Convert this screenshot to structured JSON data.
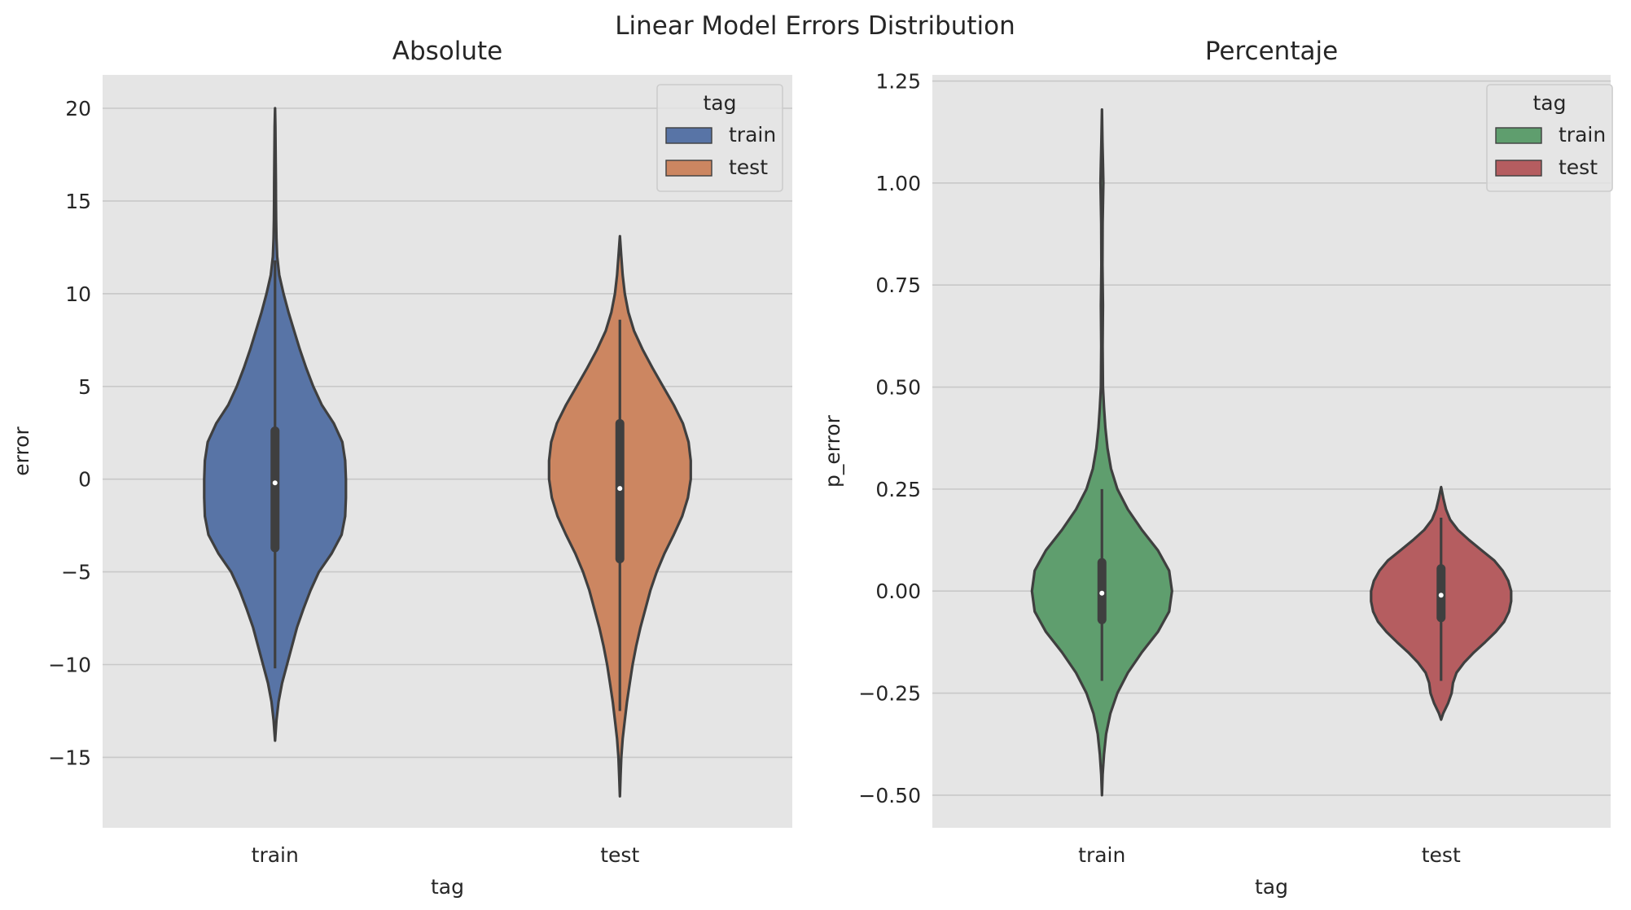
{
  "figure": {
    "title": "Linear Model Errors Distribution"
  },
  "chart_data": [
    {
      "type": "violin",
      "title": "Absolute",
      "xlabel": "tag",
      "ylabel": "error",
      "categories": [
        "train",
        "test"
      ],
      "ylim": [
        -18.8,
        21.8
      ],
      "yticks": [
        -15,
        -10,
        -5,
        0,
        5,
        10,
        15,
        20
      ],
      "ytick_labels": [
        "−15",
        "−10",
        "−5",
        "0",
        "5",
        "10",
        "15",
        "20"
      ],
      "grid": true,
      "legend": {
        "title": "tag",
        "position": "top-right",
        "entries": [
          "train",
          "test"
        ]
      },
      "series": [
        {
          "name": "train",
          "color": "#5874a6",
          "min": -10.2,
          "q1": -3.7,
          "median": -0.2,
          "q3": 2.6,
          "max": 11.8,
          "density": [
            [
              -14.1,
              0.0
            ],
            [
              -13.0,
              0.02
            ],
            [
              -12.0,
              0.05
            ],
            [
              -11.0,
              0.1
            ],
            [
              -10.0,
              0.17
            ],
            [
              -9.0,
              0.24
            ],
            [
              -8.0,
              0.31
            ],
            [
              -7.0,
              0.4
            ],
            [
              -6.0,
              0.5
            ],
            [
              -5.0,
              0.62
            ],
            [
              -4.0,
              0.8
            ],
            [
              -3.0,
              0.94
            ],
            [
              -2.0,
              0.99
            ],
            [
              -1.0,
              1.0
            ],
            [
              0.0,
              1.0
            ],
            [
              1.0,
              0.99
            ],
            [
              2.0,
              0.95
            ],
            [
              3.0,
              0.83
            ],
            [
              4.0,
              0.66
            ],
            [
              5.0,
              0.54
            ],
            [
              6.0,
              0.44
            ],
            [
              7.0,
              0.35
            ],
            [
              8.0,
              0.27
            ],
            [
              9.0,
              0.19
            ],
            [
              10.0,
              0.12
            ],
            [
              11.0,
              0.06
            ],
            [
              12.0,
              0.03
            ],
            [
              13.0,
              0.02
            ],
            [
              14.0,
              0.015
            ],
            [
              15.0,
              0.013
            ],
            [
              16.0,
              0.012
            ],
            [
              17.0,
              0.01
            ],
            [
              18.0,
              0.008
            ],
            [
              19.0,
              0.005
            ],
            [
              20.0,
              0.0
            ]
          ]
        },
        {
          "name": "test",
          "color": "#cc8661",
          "min": -12.5,
          "q1": -4.3,
          "median": -0.5,
          "q3": 3.0,
          "max": 8.6,
          "density": [
            [
              -17.1,
              0.0
            ],
            [
              -16.0,
              0.01
            ],
            [
              -15.0,
              0.02
            ],
            [
              -14.0,
              0.04
            ],
            [
              -13.0,
              0.07
            ],
            [
              -12.0,
              0.1
            ],
            [
              -11.0,
              0.14
            ],
            [
              -10.0,
              0.18
            ],
            [
              -9.0,
              0.23
            ],
            [
              -8.0,
              0.29
            ],
            [
              -7.0,
              0.36
            ],
            [
              -6.0,
              0.43
            ],
            [
              -5.0,
              0.52
            ],
            [
              -4.0,
              0.63
            ],
            [
              -3.0,
              0.76
            ],
            [
              -2.0,
              0.88
            ],
            [
              -1.0,
              0.96
            ],
            [
              0.0,
              1.0
            ],
            [
              1.0,
              1.0
            ],
            [
              2.0,
              0.97
            ],
            [
              3.0,
              0.89
            ],
            [
              4.0,
              0.76
            ],
            [
              5.0,
              0.61
            ],
            [
              6.0,
              0.46
            ],
            [
              7.0,
              0.32
            ],
            [
              8.0,
              0.2
            ],
            [
              9.0,
              0.12
            ],
            [
              10.0,
              0.07
            ],
            [
              11.0,
              0.04
            ],
            [
              12.0,
              0.02
            ],
            [
              13.1,
              0.0
            ]
          ]
        }
      ]
    },
    {
      "type": "violin",
      "title": "Percentaje",
      "xlabel": "tag",
      "ylabel": "p_error",
      "categories": [
        "train",
        "test"
      ],
      "ylim": [
        -0.58,
        1.265
      ],
      "yticks": [
        -0.5,
        -0.25,
        0.0,
        0.25,
        0.5,
        0.75,
        1.0,
        1.25
      ],
      "ytick_labels": [
        "−0.50",
        "−0.25",
        "0.00",
        "0.25",
        "0.50",
        "0.75",
        "1.00",
        "1.25"
      ],
      "grid": true,
      "legend": {
        "title": "tag",
        "position": "top-right",
        "entries": [
          "train",
          "test"
        ]
      },
      "series": [
        {
          "name": "train",
          "color": "#5f9e6e",
          "min": -0.22,
          "q1": -0.07,
          "median": -0.005,
          "q3": 0.07,
          "max": 0.25,
          "density": [
            [
              -0.5,
              0.0
            ],
            [
              -0.45,
              0.01
            ],
            [
              -0.4,
              0.03
            ],
            [
              -0.35,
              0.06
            ],
            [
              -0.3,
              0.12
            ],
            [
              -0.25,
              0.22
            ],
            [
              -0.2,
              0.37
            ],
            [
              -0.15,
              0.57
            ],
            [
              -0.1,
              0.8
            ],
            [
              -0.05,
              0.96
            ],
            [
              0.0,
              1.0
            ],
            [
              0.05,
              0.96
            ],
            [
              0.1,
              0.8
            ],
            [
              0.15,
              0.57
            ],
            [
              0.2,
              0.37
            ],
            [
              0.25,
              0.22
            ],
            [
              0.3,
              0.13
            ],
            [
              0.35,
              0.08
            ],
            [
              0.4,
              0.05
            ],
            [
              0.45,
              0.03
            ],
            [
              0.5,
              0.015
            ],
            [
              0.6,
              0.01
            ],
            [
              0.7,
              0.015
            ],
            [
              0.8,
              0.008
            ],
            [
              0.9,
              0.01
            ],
            [
              1.0,
              0.02
            ],
            [
              1.05,
              0.015
            ],
            [
              1.1,
              0.008
            ],
            [
              1.18,
              0.0
            ]
          ]
        },
        {
          "name": "test",
          "color": "#b55d60",
          "min": -0.22,
          "q1": -0.065,
          "median": -0.01,
          "q3": 0.055,
          "max": 0.18,
          "density": [
            [
              -0.315,
              0.0
            ],
            [
              -0.3,
              0.03
            ],
            [
              -0.275,
              0.1
            ],
            [
              -0.25,
              0.15
            ],
            [
              -0.225,
              0.17
            ],
            [
              -0.2,
              0.22
            ],
            [
              -0.175,
              0.33
            ],
            [
              -0.15,
              0.47
            ],
            [
              -0.125,
              0.63
            ],
            [
              -0.1,
              0.78
            ],
            [
              -0.075,
              0.9
            ],
            [
              -0.05,
              0.97
            ],
            [
              -0.025,
              1.0
            ],
            [
              0.0,
              1.0
            ],
            [
              0.025,
              0.96
            ],
            [
              0.05,
              0.88
            ],
            [
              0.075,
              0.76
            ],
            [
              0.1,
              0.58
            ],
            [
              0.125,
              0.4
            ],
            [
              0.15,
              0.24
            ],
            [
              0.175,
              0.13
            ],
            [
              0.2,
              0.07
            ],
            [
              0.225,
              0.035
            ],
            [
              0.255,
              0.0
            ]
          ]
        }
      ]
    }
  ]
}
